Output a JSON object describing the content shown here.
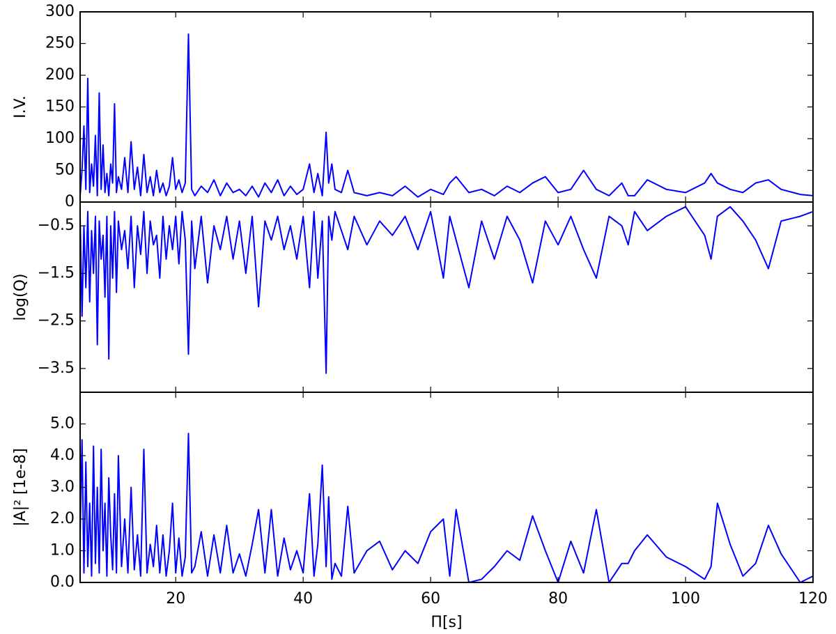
{
  "chart_data": [
    {
      "type": "line",
      "ylabel": "I.V.",
      "x": [
        5.0,
        5.3,
        5.6,
        5.9,
        6.2,
        6.5,
        6.8,
        7.1,
        7.4,
        7.7,
        8.0,
        8.3,
        8.6,
        8.9,
        9.2,
        9.5,
        9.8,
        10.1,
        10.4,
        10.7,
        11,
        11.5,
        12,
        12.5,
        13,
        13.5,
        14,
        14.5,
        15,
        15.5,
        16,
        16.5,
        17,
        17.5,
        18,
        18.5,
        19,
        19.5,
        20,
        20.5,
        21,
        21.5,
        22,
        22.5,
        23,
        24,
        25,
        26,
        27,
        28,
        29,
        30,
        31,
        32,
        33,
        34,
        35,
        36,
        37,
        38,
        39,
        40,
        41,
        41.7,
        42.3,
        43,
        43.6,
        44,
        44.5,
        45,
        46,
        47,
        48,
        50,
        52,
        54,
        56,
        58,
        60,
        62,
        63,
        64,
        66,
        68,
        70,
        72,
        74,
        76,
        78,
        80,
        82,
        84,
        86,
        88,
        90,
        91,
        92,
        94,
        97,
        100,
        103,
        104,
        105,
        107,
        109,
        111,
        113,
        115,
        118,
        120
      ],
      "series": [
        {
          "color": "#0000ff",
          "values": [
            10,
            50,
            120,
            20,
            195,
            15,
            60,
            25,
            105,
            10,
            172,
            20,
            90,
            15,
            45,
            10,
            60,
            30,
            155,
            15,
            40,
            20,
            70,
            15,
            95,
            20,
            55,
            10,
            75,
            15,
            40,
            10,
            50,
            15,
            30,
            10,
            25,
            70,
            20,
            35,
            15,
            30,
            265,
            20,
            10,
            25,
            15,
            35,
            10,
            30,
            15,
            20,
            10,
            25,
            8,
            30,
            15,
            35,
            10,
            25,
            12,
            20,
            60,
            15,
            45,
            10,
            110,
            30,
            60,
            20,
            15,
            50,
            15,
            10,
            15,
            10,
            25,
            8,
            20,
            12,
            30,
            40,
            15,
            20,
            10,
            25,
            15,
            30,
            40,
            15,
            20,
            50,
            20,
            10,
            30,
            10,
            10,
            35,
            20,
            15,
            30,
            45,
            30,
            20,
            15,
            30,
            35,
            20,
            12,
            10
          ]
        }
      ],
      "xlim": [
        5,
        120
      ],
      "xticks": [
        20,
        40,
        60,
        80,
        100,
        120
      ],
      "ylim": [
        0,
        300
      ],
      "yticks": [
        0,
        50,
        100,
        150,
        200,
        250,
        300
      ]
    },
    {
      "type": "line",
      "ylabel": "log(Q)",
      "x": [
        5.0,
        5.3,
        5.6,
        5.9,
        6.2,
        6.5,
        6.8,
        7.1,
        7.4,
        7.7,
        8.0,
        8.3,
        8.6,
        8.9,
        9.2,
        9.5,
        9.8,
        10.1,
        10.4,
        10.7,
        11,
        11.5,
        12,
        12.5,
        13,
        13.5,
        14,
        14.5,
        15,
        15.5,
        16,
        16.5,
        17,
        17.5,
        18,
        18.5,
        19,
        19.5,
        20,
        20.5,
        21,
        21.5,
        22,
        22.5,
        23,
        24,
        25,
        26,
        27,
        28,
        29,
        30,
        31,
        32,
        33,
        34,
        35,
        36,
        37,
        38,
        39,
        40,
        41,
        41.7,
        42.3,
        43,
        43.6,
        44,
        44.5,
        45,
        46,
        47,
        48,
        50,
        52,
        54,
        56,
        58,
        60,
        62,
        63,
        64,
        66,
        68,
        70,
        72,
        74,
        76,
        78,
        80,
        82,
        84,
        86,
        88,
        90,
        91,
        92,
        94,
        97,
        100,
        103,
        104,
        105,
        107,
        109,
        111,
        113,
        115,
        118,
        120
      ],
      "series": [
        {
          "color": "#0000ff",
          "values": [
            -0.3,
            -2.4,
            -0.5,
            -1.8,
            -0.2,
            -2.1,
            -0.6,
            -1.5,
            -0.3,
            -3.0,
            -0.4,
            -1.2,
            -0.7,
            -2.0,
            -0.3,
            -3.3,
            -0.5,
            -1.6,
            -0.2,
            -1.9,
            -0.4,
            -1.0,
            -0.6,
            -1.4,
            -0.3,
            -1.8,
            -0.5,
            -1.1,
            -0.2,
            -1.5,
            -0.4,
            -0.9,
            -0.7,
            -1.6,
            -0.3,
            -1.2,
            -0.5,
            -1.0,
            -0.3,
            -1.3,
            -0.2,
            -0.8,
            -3.2,
            -0.4,
            -1.4,
            -0.3,
            -1.7,
            -0.5,
            -1.0,
            -0.3,
            -1.2,
            -0.4,
            -1.5,
            -0.3,
            -2.2,
            -0.4,
            -0.8,
            -0.3,
            -1.0,
            -0.5,
            -1.2,
            -0.3,
            -1.8,
            -0.2,
            -1.6,
            -0.4,
            -3.6,
            -0.3,
            -0.8,
            -0.2,
            -0.6,
            -1.0,
            -0.3,
            -0.9,
            -0.4,
            -0.7,
            -0.3,
            -1.0,
            -0.2,
            -1.6,
            -0.3,
            -0.8,
            -1.8,
            -0.4,
            -1.2,
            -0.3,
            -0.8,
            -1.7,
            -0.4,
            -0.9,
            -0.3,
            -1.0,
            -1.6,
            -0.3,
            -0.5,
            -0.9,
            -0.2,
            -0.6,
            -0.3,
            -0.1,
            -0.7,
            -1.2,
            -0.3,
            -0.1,
            -0.4,
            -0.8,
            -1.4,
            -0.4,
            -0.3,
            -0.2
          ]
        }
      ],
      "xlim": [
        5,
        120
      ],
      "xticks": [
        20,
        40,
        60,
        80,
        100,
        120
      ],
      "ylim": [
        -4,
        0
      ],
      "yticks": [
        {
          "value": -0.5,
          "label": "−0.5"
        },
        {
          "value": -1.5,
          "label": "−1.5"
        },
        {
          "value": -2.5,
          "label": "−2.5"
        },
        {
          "value": -3.5,
          "label": "−3.5"
        }
      ]
    },
    {
      "type": "line",
      "ylabel": "|A|² [1e-8]",
      "xlabel": "Π[s]",
      "x": [
        5.0,
        5.3,
        5.6,
        5.9,
        6.2,
        6.5,
        6.8,
        7.1,
        7.4,
        7.7,
        8.0,
        8.3,
        8.6,
        8.9,
        9.2,
        9.5,
        9.8,
        10.1,
        10.4,
        10.7,
        11,
        11.5,
        12,
        12.5,
        13,
        13.5,
        14,
        14.5,
        15,
        15.5,
        16,
        16.5,
        17,
        17.5,
        18,
        18.5,
        19,
        19.5,
        20,
        20.5,
        21,
        21.5,
        22,
        22.5,
        23,
        24,
        25,
        26,
        27,
        28,
        29,
        30,
        31,
        32,
        33,
        34,
        35,
        36,
        37,
        38,
        39,
        40,
        41,
        41.7,
        42.3,
        43,
        43.6,
        44,
        44.5,
        45,
        46,
        47,
        48,
        50,
        52,
        54,
        56,
        58,
        60,
        62,
        63,
        64,
        66,
        68,
        70,
        72,
        74,
        76,
        78,
        80,
        82,
        84,
        86,
        88,
        90,
        91,
        92,
        94,
        97,
        100,
        103,
        104,
        105,
        107,
        109,
        111,
        113,
        115,
        118,
        120
      ],
      "series": [
        {
          "color": "#0000ff",
          "values": [
            1.5,
            4.5,
            0.3,
            3.8,
            0.5,
            2.5,
            0.2,
            4.3,
            0.6,
            3.0,
            0.3,
            4.2,
            1.0,
            2.5,
            0.2,
            3.3,
            1.5,
            0.4,
            2.8,
            0.3,
            4.0,
            0.5,
            2.0,
            0.3,
            3.0,
            0.4,
            1.5,
            0.2,
            4.2,
            0.3,
            1.2,
            0.5,
            1.8,
            0.3,
            1.5,
            0.2,
            1.0,
            2.5,
            0.3,
            1.4,
            0.2,
            0.8,
            4.7,
            0.3,
            0.5,
            1.6,
            0.2,
            1.5,
            0.3,
            1.8,
            0.3,
            0.9,
            0.2,
            1.2,
            2.3,
            0.3,
            2.3,
            0.2,
            1.4,
            0.4,
            1.0,
            0.3,
            2.8,
            0.2,
            1.2,
            3.7,
            0.5,
            2.7,
            0.1,
            0.6,
            0.2,
            2.4,
            0.3,
            1.0,
            1.3,
            0.4,
            1.0,
            0.6,
            1.6,
            2.0,
            0.2,
            2.3,
            0.0,
            0.1,
            0.5,
            1.0,
            0.7,
            2.1,
            1.0,
            0.0,
            1.3,
            0.3,
            2.3,
            0.0,
            0.6,
            0.6,
            1.0,
            1.5,
            0.8,
            0.5,
            0.1,
            0.5,
            2.5,
            1.2,
            0.2,
            0.6,
            1.8,
            0.9,
            0.0,
            0.2
          ]
        }
      ],
      "xlim": [
        5,
        120
      ],
      "xticks": [
        20,
        40,
        60,
        80,
        100,
        120
      ],
      "ylim": [
        0,
        6
      ],
      "yticks": [
        {
          "value": 0,
          "label": "0.0"
        },
        {
          "value": 1,
          "label": "1.0"
        },
        {
          "value": 2,
          "label": "2.0"
        },
        {
          "value": 3,
          "label": "3.0"
        },
        {
          "value": 4,
          "label": "4.0"
        },
        {
          "value": 5,
          "label": "5.0"
        }
      ]
    }
  ]
}
